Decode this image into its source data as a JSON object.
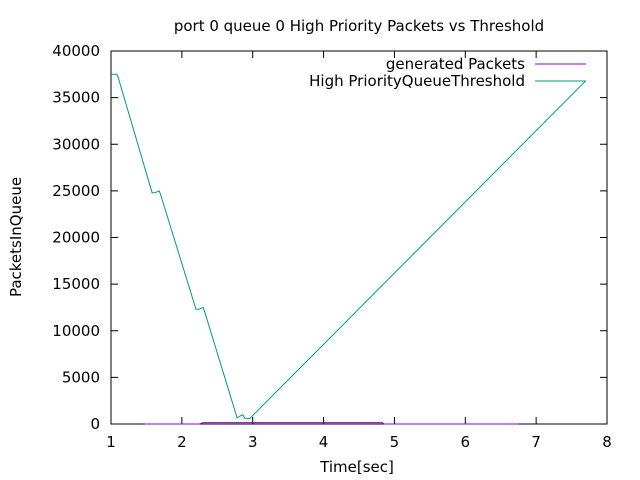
{
  "chart_data": {
    "type": "line",
    "title": "port 0 queue 0 High Priority Packets vs Threshold",
    "xlabel": "Time[sec]",
    "ylabel": "PacketsInQueue",
    "xlim": [
      1,
      8
    ],
    "ylim": [
      0,
      40000
    ],
    "xticks": [
      1,
      2,
      3,
      4,
      5,
      6,
      7,
      8
    ],
    "yticks": [
      0,
      5000,
      10000,
      15000,
      20000,
      25000,
      30000,
      35000,
      40000
    ],
    "grid": false,
    "legend_position": "top-right",
    "series": [
      {
        "name": "generated Packets",
        "color": "#9400d3",
        "x": [
          1.48,
          2.25,
          2.3,
          4.83,
          4.85,
          6.75
        ],
        "y": [
          0,
          0,
          150,
          150,
          0,
          0
        ]
      },
      {
        "name": "High PriorityQueueThreshold",
        "color": "#009e73",
        "x": [
          1.0,
          1.08,
          1.1,
          1.58,
          1.62,
          1.68,
          1.7,
          2.2,
          2.24,
          2.3,
          2.32,
          2.78,
          2.82,
          2.86,
          2.89,
          2.96,
          7.7
        ],
        "y": [
          37500,
          37500,
          37200,
          24800,
          24800,
          25000,
          24600,
          12300,
          12300,
          12500,
          12100,
          650,
          850,
          1000,
          600,
          600,
          36800
        ]
      }
    ]
  }
}
